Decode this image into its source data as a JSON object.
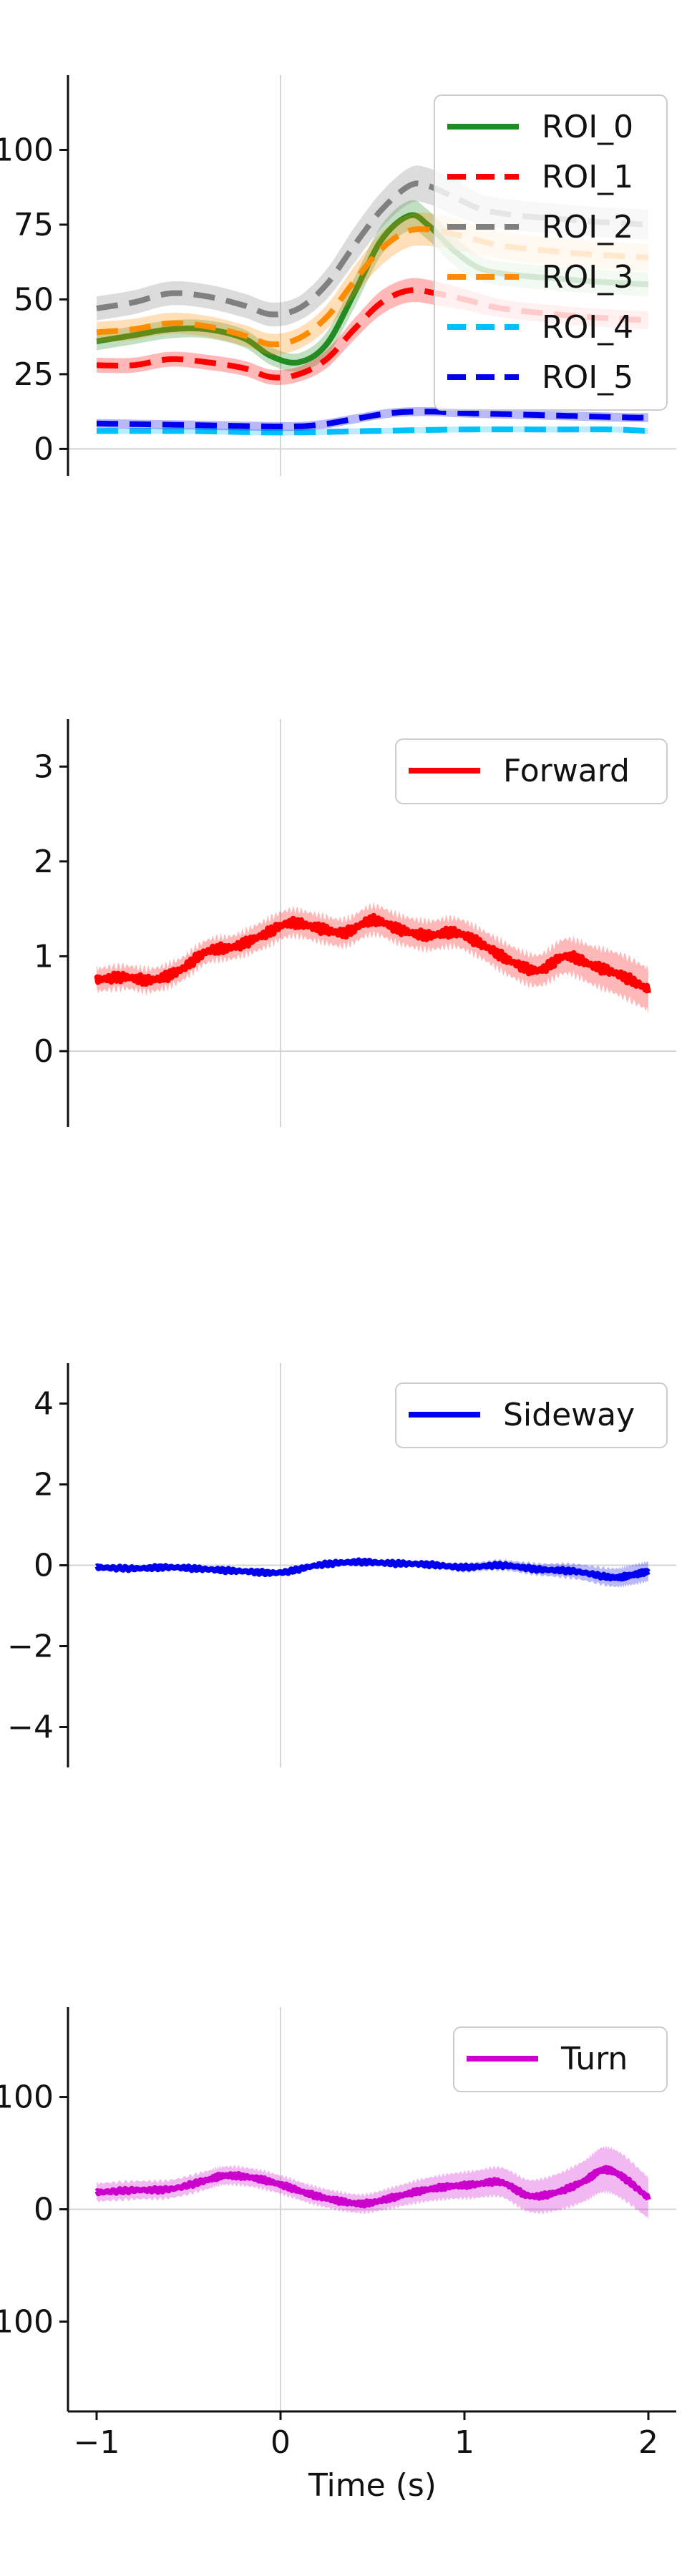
{
  "chart_data": [
    {
      "type": "line",
      "title": "",
      "xlabel": "",
      "ylabel": "",
      "xlim": [
        -1.1,
        2.1
      ],
      "ylim": [
        -9,
        125
      ],
      "yticks": [
        0,
        25,
        50,
        75,
        100
      ],
      "ytick_labels": [
        "0",
        "25",
        "50",
        "75",
        "100"
      ],
      "xticks": [],
      "xtick_labels": [],
      "zero_line": true,
      "vline_at": 0,
      "legend": "top-right",
      "grid": false,
      "series": [
        {
          "name": "ROI_0",
          "color": "#228B22",
          "dash": "solid",
          "x": [
            -1,
            -0.8,
            -0.6,
            -0.4,
            -0.2,
            -0.05,
            0.1,
            0.25,
            0.4,
            0.55,
            0.7,
            0.8,
            0.95,
            1.1,
            1.3,
            1.5,
            1.7,
            2.0
          ],
          "y": [
            36,
            38,
            40,
            40,
            37,
            31,
            29,
            35,
            52,
            70,
            78,
            75,
            66,
            60,
            58,
            57,
            56,
            55
          ],
          "err": [
            3,
            3,
            3,
            3,
            3,
            3,
            3,
            4,
            5,
            5,
            5,
            5,
            5,
            4,
            4,
            4,
            4,
            4
          ]
        },
        {
          "name": "ROI_1",
          "color": "#FF0000",
          "dash": "dashed",
          "x": [
            -1,
            -0.8,
            -0.6,
            -0.4,
            -0.2,
            -0.05,
            0.1,
            0.25,
            0.4,
            0.55,
            0.7,
            0.85,
            1.0,
            1.2,
            1.5,
            1.7,
            2.0
          ],
          "y": [
            28,
            28,
            30,
            29,
            27,
            24,
            25,
            30,
            40,
            49,
            53,
            52,
            50,
            47,
            45,
            44,
            43
          ],
          "err": [
            2.5,
            2.5,
            2.5,
            2.5,
            2.5,
            2.5,
            2.5,
            3,
            3.5,
            4,
            4,
            4,
            3.5,
            3,
            3,
            3,
            3
          ]
        },
        {
          "name": "ROI_2",
          "color": "#808080",
          "dash": "dashed",
          "x": [
            -1,
            -0.8,
            -0.6,
            -0.4,
            -0.2,
            -0.05,
            0.1,
            0.25,
            0.4,
            0.55,
            0.7,
            0.8,
            0.95,
            1.1,
            1.3,
            1.5,
            1.7,
            2.0
          ],
          "y": [
            47,
            49,
            52,
            51,
            48,
            45,
            47,
            55,
            68,
            80,
            88,
            88,
            84,
            80,
            78,
            77,
            76,
            75
          ],
          "err": [
            4,
            4,
            4,
            4,
            4,
            4,
            4,
            5,
            6,
            6,
            6,
            6,
            6,
            5,
            5,
            5,
            5,
            5
          ]
        },
        {
          "name": "ROI_3",
          "color": "#FF8C00",
          "dash": "dashed",
          "x": [
            -1,
            -0.8,
            -0.6,
            -0.4,
            -0.2,
            -0.05,
            0.1,
            0.25,
            0.4,
            0.55,
            0.7,
            0.85,
            1.0,
            1.2,
            1.5,
            1.7,
            2.0
          ],
          "y": [
            39,
            40,
            42,
            41,
            38,
            35,
            37,
            44,
            56,
            67,
            73,
            73,
            71,
            68,
            66,
            65,
            64
          ],
          "err": [
            3.5,
            3.5,
            3.5,
            3.5,
            3.5,
            3.5,
            3.5,
            4,
            5,
            5.5,
            5.5,
            5.5,
            5,
            4.5,
            4.5,
            4.5,
            4.5
          ]
        },
        {
          "name": "ROI_4",
          "color": "#00BFFF",
          "dash": "dashed",
          "x": [
            -1,
            -0.5,
            0,
            0.5,
            1.0,
            1.5,
            1.8,
            2.0
          ],
          "y": [
            6,
            6,
            5.5,
            6,
            6.5,
            6.5,
            6.5,
            6
          ],
          "err": [
            1,
            1,
            1,
            1,
            1,
            1,
            1,
            1
          ]
        },
        {
          "name": "ROI_5",
          "color": "#0000EE",
          "dash": "dashed",
          "x": [
            -1,
            -0.5,
            0,
            0.2,
            0.4,
            0.6,
            0.8,
            1.0,
            1.3,
            1.6,
            1.9,
            2.0
          ],
          "y": [
            8.5,
            8,
            7.5,
            8,
            10,
            12,
            12.5,
            12,
            11.5,
            11,
            10.5,
            10.5
          ],
          "err": [
            1.5,
            1.5,
            1.5,
            1.5,
            1.5,
            1.5,
            1.5,
            1.5,
            1.5,
            1.5,
            1.5,
            1.5
          ]
        }
      ]
    },
    {
      "type": "line",
      "title": "",
      "xlabel": "",
      "ylabel": "",
      "xlim": [
        -1.1,
        2.1
      ],
      "ylim": [
        -0.8,
        3.5
      ],
      "yticks": [
        0,
        1,
        2,
        3
      ],
      "ytick_labels": [
        "0",
        "1",
        "2",
        "3"
      ],
      "xticks": [],
      "xtick_labels": [],
      "zero_line": true,
      "vline_at": 0,
      "legend": "top-right",
      "grid": false,
      "series": [
        {
          "name": "Forward",
          "color": "#FF0000",
          "dash": "solid",
          "wiggle": 0.03,
          "x": [
            -1,
            -0.85,
            -0.7,
            -0.55,
            -0.4,
            -0.25,
            -0.1,
            0.05,
            0.2,
            0.35,
            0.5,
            0.65,
            0.8,
            0.95,
            1.1,
            1.25,
            1.4,
            1.55,
            1.7,
            1.85,
            2.0
          ],
          "y": [
            0.75,
            0.78,
            0.75,
            0.85,
            1.05,
            1.1,
            1.22,
            1.35,
            1.3,
            1.25,
            1.38,
            1.28,
            1.22,
            1.25,
            1.12,
            0.95,
            0.85,
            1.0,
            0.9,
            0.8,
            0.65
          ],
          "err": [
            0.12,
            0.12,
            0.12,
            0.12,
            0.12,
            0.12,
            0.14,
            0.14,
            0.14,
            0.14,
            0.15,
            0.15,
            0.15,
            0.15,
            0.15,
            0.16,
            0.16,
            0.18,
            0.2,
            0.22,
            0.22
          ]
        }
      ]
    },
    {
      "type": "line",
      "title": "",
      "xlabel": "",
      "ylabel": "",
      "xlim": [
        -1.1,
        2.1
      ],
      "ylim": [
        -5,
        5
      ],
      "yticks": [
        -4,
        -2,
        0,
        2,
        4
      ],
      "ytick_labels": [
        "−4",
        "−2",
        "0",
        "2",
        "4"
      ],
      "xticks": [],
      "xtick_labels": [],
      "zero_line": true,
      "vline_at": 0,
      "legend": "top-right",
      "grid": false,
      "series": [
        {
          "name": "Sideway",
          "color": "#0000EE",
          "dash": "solid",
          "wiggle": 0.03,
          "x": [
            -1,
            -0.8,
            -0.6,
            -0.4,
            -0.2,
            0,
            0.2,
            0.4,
            0.6,
            0.8,
            1.0,
            1.2,
            1.4,
            1.6,
            1.8,
            1.9,
            2.0
          ],
          "y": [
            -0.05,
            -0.08,
            -0.05,
            -0.1,
            -0.15,
            -0.18,
            0,
            0.08,
            0.05,
            0.02,
            -0.05,
            0,
            -0.1,
            -0.15,
            -0.3,
            -0.25,
            -0.15
          ],
          "err": [
            0.06,
            0.06,
            0.06,
            0.06,
            0.06,
            0.07,
            0.07,
            0.08,
            0.08,
            0.08,
            0.1,
            0.12,
            0.14,
            0.18,
            0.22,
            0.24,
            0.24
          ]
        }
      ]
    },
    {
      "type": "line",
      "title": "",
      "xlabel": "Time (s)",
      "ylabel": "",
      "xlim": [
        -1.1,
        2.1
      ],
      "ylim": [
        -180,
        180
      ],
      "yticks": [
        -100,
        0,
        100
      ],
      "ytick_labels": [
        "−100",
        "0",
        "100"
      ],
      "xticks": [
        -1,
        0,
        1,
        2
      ],
      "xtick_labels": [
        "−1",
        "0",
        "1",
        "2"
      ],
      "zero_line": true,
      "vline_at": 0,
      "legend": "top-right",
      "grid": false,
      "series": [
        {
          "name": "Turn",
          "color": "#CC00CC",
          "dash": "solid",
          "wiggle": 1.2,
          "x": [
            -1,
            -0.8,
            -0.6,
            -0.4,
            -0.3,
            -0.15,
            0,
            0.15,
            0.3,
            0.45,
            0.6,
            0.75,
            0.9,
            1.05,
            1.2,
            1.35,
            1.5,
            1.65,
            1.75,
            1.85,
            2.0
          ],
          "y": [
            15,
            17,
            18,
            26,
            30,
            28,
            22,
            14,
            8,
            5,
            10,
            16,
            20,
            22,
            24,
            12,
            15,
            25,
            35,
            30,
            10
          ],
          "err": [
            8,
            8,
            8,
            8,
            8,
            8,
            8,
            8,
            8,
            8,
            9,
            10,
            11,
            12,
            13,
            14,
            16,
            18,
            20,
            20,
            18
          ]
        }
      ]
    }
  ]
}
